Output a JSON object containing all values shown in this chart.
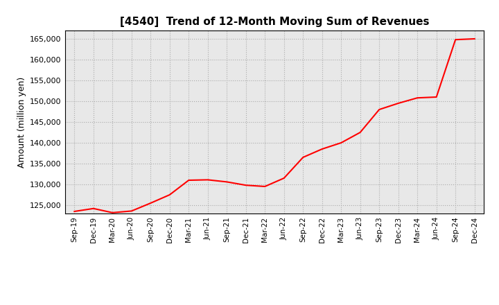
{
  "title": "[4540]  Trend of 12-Month Moving Sum of Revenues",
  "ylabel": "Amount (million yen)",
  "line_color": "#FF0000",
  "bg_color": "#FFFFFF",
  "plot_bg_color": "#E8E8E8",
  "grid_color": "#AAAAAA",
  "ylim": [
    123000,
    167000
  ],
  "yticks": [
    125000,
    130000,
    135000,
    140000,
    145000,
    150000,
    155000,
    160000,
    165000
  ],
  "x_labels": [
    "Sep-19",
    "Dec-19",
    "Mar-20",
    "Jun-20",
    "Sep-20",
    "Dec-20",
    "Mar-21",
    "Jun-21",
    "Sep-21",
    "Dec-21",
    "Mar-22",
    "Jun-22",
    "Sep-22",
    "Dec-22",
    "Mar-23",
    "Jun-23",
    "Sep-23",
    "Dec-23",
    "Mar-24",
    "Jun-24",
    "Sep-24",
    "Dec-24"
  ],
  "values": [
    123500,
    124200,
    123200,
    123600,
    125500,
    127500,
    131000,
    131100,
    130600,
    129800,
    129500,
    131500,
    136500,
    138500,
    140000,
    142500,
    148000,
    149500,
    150800,
    151000,
    164800,
    165000
  ]
}
